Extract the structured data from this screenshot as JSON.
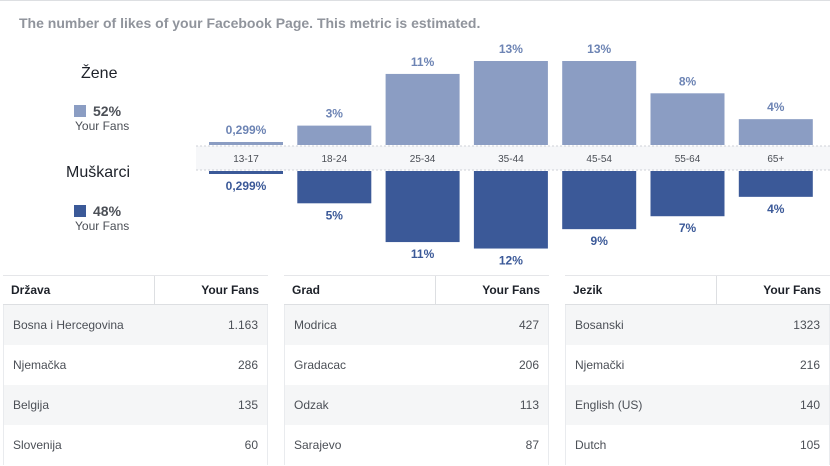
{
  "title": "The number of likes of your Facebook Page. This metric is estimated.",
  "legend": {
    "women": {
      "label": "Žene",
      "pct": "52%",
      "sub": "Your Fans",
      "color": "#8b9dc3"
    },
    "men": {
      "label": "Muškarci",
      "pct": "48%",
      "sub": "Your Fans",
      "color": "#3b5998"
    }
  },
  "chart_data": {
    "type": "bar",
    "categories": [
      "13-17",
      "18-24",
      "25-34",
      "35-44",
      "45-54",
      "55-64",
      "65+"
    ],
    "series": [
      {
        "name": "Žene",
        "values": [
          0.299,
          3,
          11,
          13,
          13,
          8,
          4
        ],
        "labels": [
          "0,299%",
          "3%",
          "11%",
          "13%",
          "13%",
          "8%",
          "4%"
        ],
        "color": "#8b9dc3"
      },
      {
        "name": "Muškarci",
        "values": [
          0.299,
          5,
          11,
          12,
          9,
          7,
          4
        ],
        "labels": [
          "0,299%",
          "5%",
          "11%",
          "12%",
          "9%",
          "7%",
          "4%"
        ],
        "color": "#3b5998"
      }
    ],
    "title": "The number of likes of your Facebook Page. This metric is estimated.",
    "xlabel": "",
    "ylabel": "",
    "ylim": [
      0,
      13
    ]
  },
  "tables": [
    {
      "col1": "Država",
      "col2": "Your Fans",
      "rows": [
        {
          "name": "Bosna i Hercegovina",
          "value": "1.163"
        },
        {
          "name": "Njemačka",
          "value": "286"
        },
        {
          "name": "Belgija",
          "value": "135"
        },
        {
          "name": "Slovenija",
          "value": "60"
        }
      ]
    },
    {
      "col1": "Grad",
      "col2": "Your Fans",
      "rows": [
        {
          "name": "Modrica",
          "value": "427"
        },
        {
          "name": "Gradacac",
          "value": "206"
        },
        {
          "name": "Odzak",
          "value": "113"
        },
        {
          "name": "Sarajevo",
          "value": "87"
        }
      ]
    },
    {
      "col1": "Jezik",
      "col2": "Your Fans",
      "rows": [
        {
          "name": "Bosanski",
          "value": "1323"
        },
        {
          "name": "Njemački",
          "value": "216"
        },
        {
          "name": "English (US)",
          "value": "140"
        },
        {
          "name": "Dutch",
          "value": "105"
        }
      ]
    }
  ]
}
